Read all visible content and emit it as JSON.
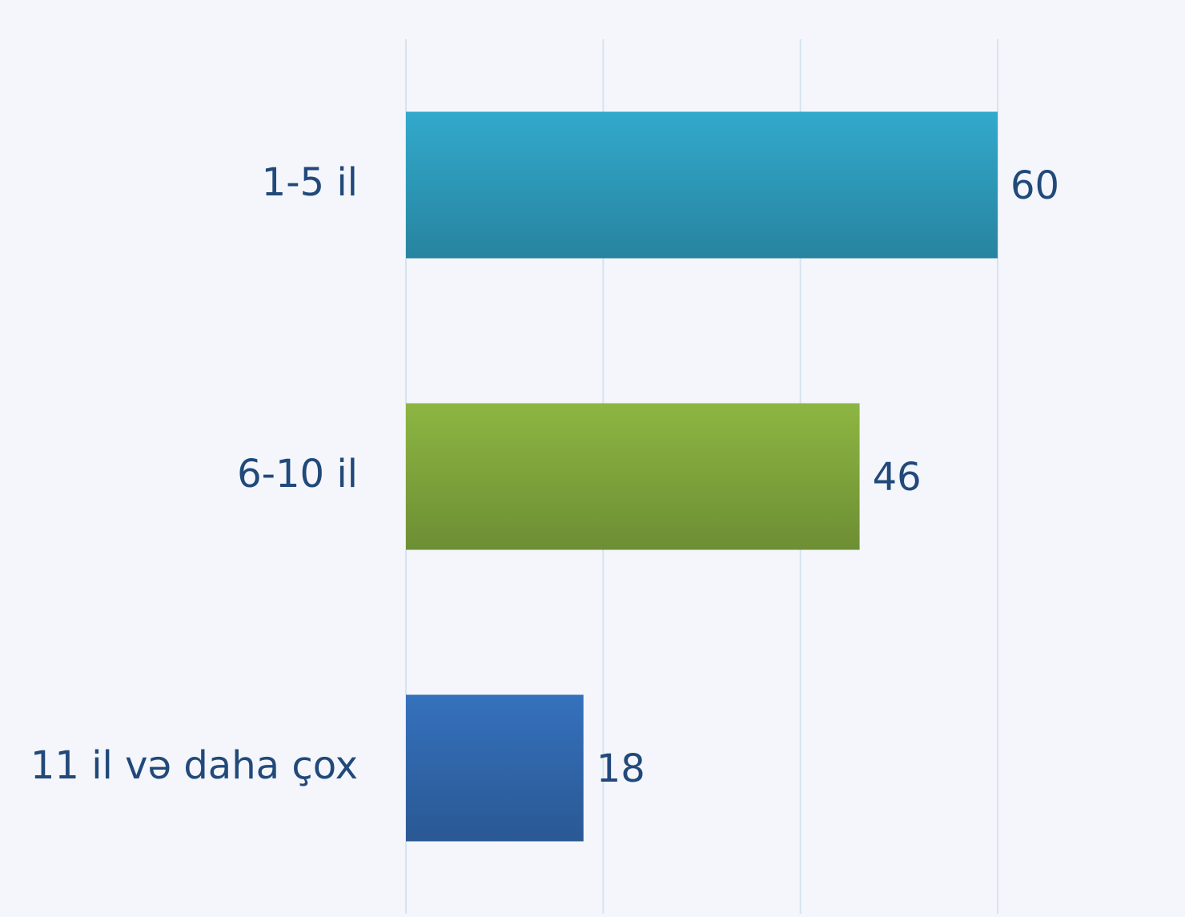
{
  "chart_data": {
    "type": "bar",
    "orientation": "horizontal",
    "categories": [
      "1-5 il",
      "6-10 il",
      "11 il və daha çox"
    ],
    "values": [
      60,
      46,
      18
    ],
    "colors": [
      "#32a9cc",
      "#8cb642",
      "#3571bd"
    ],
    "xlim": [
      0,
      60
    ],
    "xticks": [
      0,
      20,
      40,
      60
    ],
    "grid": true
  }
}
